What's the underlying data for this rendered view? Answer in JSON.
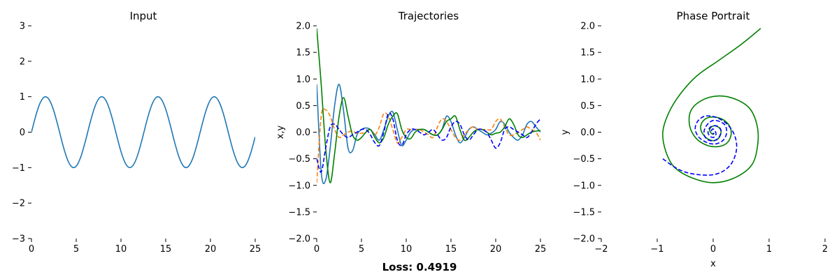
{
  "chart_data": [
    {
      "type": "line",
      "title": "Input",
      "xlabel": "",
      "ylabel": "",
      "xlim": [
        0,
        25
      ],
      "ylim": [
        -3,
        3
      ],
      "xticks": [
        0,
        5,
        10,
        15,
        20,
        25
      ],
      "yticks": [
        -3,
        -2,
        -1,
        0,
        1,
        2,
        3
      ],
      "xtick_labels": [
        "0",
        "5",
        "10",
        "15",
        "20",
        "25"
      ],
      "ytick_labels": [
        "−3",
        "−2",
        "−1",
        "0",
        "1",
        "2",
        "3"
      ],
      "grid": false,
      "series": [
        {
          "color": "#1f77b4",
          "style": "solid",
          "x": [
            0,
            0.5,
            1,
            1.5,
            2,
            2.5,
            3,
            3.5,
            4,
            4.5,
            5,
            5.5,
            6,
            6.5,
            7,
            7.5,
            8,
            8.5,
            9,
            9.5,
            10,
            10.5,
            11,
            11.5,
            12,
            12.5,
            13,
            13.5,
            14,
            14.5,
            15,
            15.5,
            16,
            16.5,
            17,
            17.5,
            18,
            18.5,
            19,
            19.5,
            20,
            20.5,
            21,
            21.5,
            22,
            22.5,
            23,
            23.5,
            24,
            24.5,
            25
          ],
          "y": [
            0,
            0.479,
            0.841,
            0.997,
            0.909,
            0.598,
            0.141,
            -0.351,
            -0.757,
            -0.978,
            -0.959,
            -0.706,
            -0.279,
            0.215,
            0.657,
            0.938,
            0.989,
            0.798,
            0.412,
            -0.075,
            -0.544,
            -0.88,
            -1,
            -0.875,
            -0.537,
            -0.066,
            0.42,
            0.803,
            0.991,
            0.935,
            0.65,
            0.207,
            -0.288,
            -0.712,
            -0.961,
            -0.976,
            -0.751,
            -0.343,
            0.15,
            0.604,
            0.913,
            0.997,
            0.837,
            0.472,
            -0.009,
            -0.487,
            -0.846,
            -0.998,
            -0.906,
            -0.59,
            -0.132
          ]
        }
      ]
    },
    {
      "type": "line",
      "title": "Trajectories",
      "xlabel": "",
      "ylabel": "x,y",
      "xlim": [
        0,
        25
      ],
      "ylim": [
        -2,
        2
      ],
      "xticks": [
        0,
        5,
        10,
        15,
        20,
        25
      ],
      "yticks": [
        -2,
        -1.5,
        -1,
        -0.5,
        0,
        0.5,
        1,
        1.5,
        2
      ],
      "xtick_labels": [
        "0",
        "5",
        "10",
        "15",
        "20",
        "25"
      ],
      "ytick_labels": [
        "−2.0",
        "−1.5",
        "−1.0",
        "−0.5",
        "0.0",
        "0.5",
        "1.0",
        "1.5",
        "2.0"
      ],
      "grid": false,
      "series": [
        {
          "color": "#1f77b4",
          "style": "solid",
          "x": [
            0,
            0.5,
            1,
            1.5,
            2,
            2.5,
            3,
            3.5,
            4,
            4.5,
            5,
            5.5,
            6,
            6.5,
            7,
            7.5,
            8,
            8.5,
            9,
            9.5,
            10,
            10.5,
            11,
            11.5,
            12,
            12.5,
            13,
            13.5,
            14,
            14.5,
            15,
            15.5,
            16,
            16.5,
            17,
            17.5,
            18,
            18.5,
            19,
            19.5,
            20,
            20.5,
            21,
            21.5,
            22,
            22.5,
            23,
            23.5,
            24,
            24.5,
            25
          ],
          "y": [
            0.9,
            -0.75,
            -0.9,
            -0.3,
            0.5,
            0.9,
            0.4,
            -0.3,
            -0.35,
            -0.05,
            0.05,
            0.08,
            0.05,
            -0.05,
            -0.15,
            0.05,
            0.3,
            0.38,
            0.05,
            -0.25,
            -0.15,
            0,
            0.05,
            0.05,
            0.05,
            0,
            -0.05,
            -0.05,
            0.05,
            0.3,
            0.2,
            -0.05,
            -0.2,
            -0.1,
            0.05,
            0.1,
            0.05,
            0,
            -0.05,
            -0.02,
            0.05,
            0.2,
            0.15,
            0,
            -0.1,
            -0.15,
            -0.05,
            0.15,
            0.2,
            0.1,
            0
          ]
        },
        {
          "color": "#ff7f0e",
          "style": "dashed",
          "x": [
            0,
            0.5,
            1,
            1.5,
            2,
            2.5,
            3,
            3.5,
            4,
            4.5,
            5,
            5.5,
            6,
            6.5,
            7,
            7.5,
            8,
            8.5,
            9,
            9.5,
            10,
            10.5,
            11,
            11.5,
            12,
            12.5,
            13,
            13.5,
            14,
            14.5,
            15,
            15.5,
            16,
            16.5,
            17,
            17.5,
            18,
            18.5,
            19,
            19.5,
            20,
            20.5,
            21,
            21.5,
            22,
            22.5,
            23,
            23.5,
            24,
            24.5,
            25
          ],
          "y": [
            -0.95,
            0.3,
            0.42,
            0.3,
            0.05,
            -0.1,
            -0.05,
            0,
            0.02,
            -0.02,
            -0.02,
            0,
            0.05,
            -0.05,
            0.1,
            0.35,
            0.3,
            0.05,
            -0.2,
            -0.1,
            0.05,
            0.05,
            0.05,
            0.05,
            0,
            -0.05,
            -0.1,
            0.1,
            0.25,
            0.2,
            0.05,
            -0.1,
            -0.15,
            -0.05,
            0.05,
            0.1,
            0.05,
            0.05,
            0.05,
            0.05,
            0.2,
            0.25,
            0.1,
            -0.05,
            -0.05,
            0,
            0.05,
            0.1,
            0.05,
            0,
            -0.15
          ]
        },
        {
          "color": "#008000",
          "style": "solid",
          "x": [
            0,
            0.5,
            1,
            1.5,
            2,
            2.5,
            3,
            3.5,
            4,
            4.5,
            5,
            5.5,
            6,
            6.5,
            7,
            7.5,
            8,
            8.5,
            9,
            9.5,
            10,
            10.5,
            11,
            11.5,
            12,
            12.5,
            13,
            13.5,
            14,
            14.5,
            15,
            15.5,
            16,
            16.5,
            17,
            17.5,
            18,
            18.5,
            19,
            19.5,
            20,
            20.5,
            21,
            21.5,
            22,
            22.5,
            23,
            23.5,
            24,
            24.5,
            25
          ],
          "y": [
            1.95,
            0.9,
            -0.3,
            -0.95,
            -0.4,
            0.3,
            0.65,
            0.3,
            -0.05,
            -0.15,
            -0.1,
            0,
            0.05,
            -0.1,
            -0.2,
            -0.1,
            0.15,
            0.3,
            0.35,
            0.05,
            -0.1,
            -0.12,
            0,
            0.05,
            0.05,
            0,
            -0.05,
            -0.05,
            0.05,
            0.2,
            0.25,
            0.3,
            0.05,
            -0.15,
            -0.1,
            0,
            0.05,
            0.05,
            0,
            -0.05,
            -0.02,
            0,
            0.1,
            0.25,
            0.15,
            -0.05,
            -0.1,
            -0.05,
            0,
            0.02,
            0.03
          ]
        },
        {
          "color": "#0000ff",
          "style": "dashed",
          "x": [
            0,
            0.5,
            1,
            1.5,
            2,
            2.5,
            3,
            3.5,
            4,
            4.5,
            5,
            5.5,
            6,
            6.5,
            7,
            7.5,
            8,
            8.5,
            9,
            9.5,
            10,
            10.5,
            11,
            11.5,
            12,
            12.5,
            13,
            13.5,
            14,
            14.5,
            15,
            15.5,
            16,
            16.5,
            17,
            17.5,
            18,
            18.5,
            19,
            19.5,
            20,
            20.5,
            21,
            21.5,
            22,
            22.5,
            23,
            23.5,
            24,
            24.5,
            25
          ],
          "y": [
            -0.5,
            -0.75,
            -0.3,
            0.1,
            0.15,
            0.05,
            -0.05,
            -0.1,
            -0.05,
            0,
            0.05,
            0.05,
            -0.05,
            -0.2,
            -0.25,
            0,
            0.35,
            0.25,
            -0.15,
            -0.25,
            -0.05,
            0.05,
            0.05,
            0,
            -0.05,
            0,
            0.05,
            -0.05,
            -0.15,
            -0.1,
            0.1,
            0.2,
            0.15,
            -0.05,
            -0.15,
            -0.05,
            0.05,
            0.05,
            0,
            -0.15,
            -0.3,
            -0.2,
            0.05,
            0.1,
            0.05,
            0,
            -0.05,
            -0.1,
            0,
            0.15,
            0.25
          ]
        }
      ]
    },
    {
      "type": "line",
      "title": "Phase Portrait",
      "xlabel": "x",
      "ylabel": "y",
      "xlim": [
        -2,
        2
      ],
      "ylim": [
        -2,
        2
      ],
      "xticks": [
        -2,
        -1,
        0,
        1,
        2
      ],
      "yticks": [
        -2,
        -1.5,
        -1,
        -0.5,
        0,
        0.5,
        1,
        1.5,
        2
      ],
      "xtick_labels": [
        "−2",
        "−1",
        "0",
        "1",
        "2"
      ],
      "ytick_labels": [
        "−2.0",
        "−1.5",
        "−1.0",
        "−0.5",
        "0.0",
        "0.5",
        "1.0",
        "1.5",
        "2.0"
      ],
      "grid": false,
      "series": [
        {
          "color": "#008000",
          "style": "solid",
          "x": [
            0.85,
            0.5,
            0.1,
            -0.3,
            -0.6,
            -0.8,
            -0.9,
            -0.85,
            -0.7,
            -0.4,
            0,
            0.4,
            0.7,
            0.8,
            0.78,
            0.65,
            0.4,
            0.1,
            -0.2,
            -0.4,
            -0.42,
            -0.3,
            -0.1,
            0.1,
            0.25,
            0.32,
            0.3,
            0.2,
            0.05,
            -0.1,
            -0.2,
            -0.22,
            -0.15,
            -0.05,
            0.05,
            0.12,
            0.14,
            0.1,
            0.03,
            -0.03,
            -0.06,
            -0.05,
            -0.02,
            0,
            0.02
          ],
          "y": [
            1.95,
            1.65,
            1.35,
            1.05,
            0.7,
            0.35,
            0,
            -0.35,
            -0.65,
            -0.85,
            -0.95,
            -0.85,
            -0.6,
            -0.2,
            0.15,
            0.45,
            0.62,
            0.68,
            0.6,
            0.4,
            0.12,
            -0.12,
            -0.25,
            -0.27,
            -0.2,
            -0.05,
            0.1,
            0.22,
            0.28,
            0.27,
            0.18,
            0.05,
            -0.08,
            -0.15,
            -0.15,
            -0.08,
            0.02,
            0.09,
            0.12,
            0.1,
            0.05,
            0,
            -0.03,
            -0.04,
            -0.02
          ]
        },
        {
          "color": "#0000ff",
          "style": "dashed",
          "x": [
            -0.9,
            -0.7,
            -0.5,
            -0.25,
            0,
            0.2,
            0.35,
            0.42,
            0.38,
            0.25,
            0.05,
            -0.15,
            -0.28,
            -0.32,
            -0.25,
            -0.1,
            0.05,
            0.18,
            0.24,
            0.22,
            0.12,
            0,
            -0.1,
            -0.16,
            -0.15,
            -0.08,
            0.02,
            0.1,
            0.14,
            0.12,
            0.05,
            -0.03,
            -0.08,
            -0.09,
            -0.05,
            0,
            0.04,
            0.05,
            0.03,
            0,
            -0.02,
            -0.03,
            -0.01,
            0.01,
            0.01
          ],
          "y": [
            -0.5,
            -0.65,
            -0.75,
            -0.8,
            -0.8,
            -0.72,
            -0.55,
            -0.3,
            -0.05,
            0.15,
            0.28,
            0.3,
            0.2,
            0.05,
            -0.1,
            -0.2,
            -0.22,
            -0.15,
            -0.02,
            0.12,
            0.2,
            0.22,
            0.15,
            0.03,
            -0.08,
            -0.15,
            -0.16,
            -0.1,
            0,
            0.08,
            0.12,
            0.11,
            0.05,
            -0.02,
            -0.08,
            -0.1,
            -0.07,
            -0.02,
            0.03,
            0.06,
            0.05,
            0.02,
            -0.01,
            -0.03,
            -0.02
          ]
        }
      ]
    }
  ],
  "footer": {
    "loss_text": "Loss: 0.4919"
  }
}
